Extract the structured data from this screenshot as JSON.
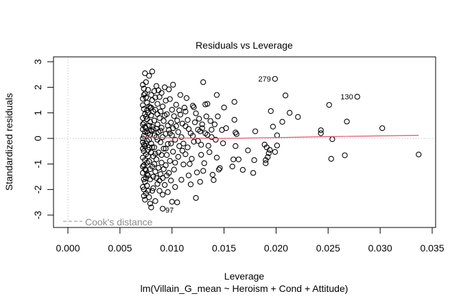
{
  "chart_data": {
    "type": "scatter",
    "title": "Residuals vs Leverage",
    "xlabel": "Leverage",
    "subtitle": "lm(Villain_G_mean ~ Heroism + Cond + Attitude)",
    "ylabel": "Standardized residuals",
    "xlim": [
      0,
      0.035
    ],
    "ylim": [
      -3.3,
      3.1
    ],
    "xticks": [
      "0.000",
      "0.005",
      "0.010",
      "0.015",
      "0.020",
      "0.025",
      "0.030",
      "0.035"
    ],
    "xtick_values": [
      0,
      0.005,
      0.01,
      0.015,
      0.02,
      0.025,
      0.03,
      0.035
    ],
    "yticks": [
      "3",
      "2",
      "1",
      "0",
      "-1",
      "-2",
      "-3"
    ],
    "ytick_values": [
      3,
      2,
      1,
      0,
      -1,
      -2,
      -3
    ],
    "legend": {
      "label": "Cook's distance",
      "position": "bottom-left",
      "style": "dashed",
      "color": "#8c8c8c"
    },
    "smoother_color": "#df536b",
    "smoother": [
      [
        0.0072,
        0.06
      ],
      [
        0.01,
        0.02
      ],
      [
        0.015,
        0.0
      ],
      [
        0.02,
        0.03
      ],
      [
        0.025,
        0.07
      ],
      [
        0.0337,
        0.12
      ]
    ],
    "labeled_points": [
      {
        "label": "279",
        "x": 0.0199,
        "y": 2.33
      },
      {
        "label": "130",
        "x": 0.0278,
        "y": 1.63
      },
      {
        "label": "97",
        "x": 0.0091,
        "y": -2.75
      }
    ],
    "points": [
      [
        0.0199,
        2.33
      ],
      [
        0.0278,
        1.63
      ],
      [
        0.0091,
        -2.75
      ],
      [
        0.0337,
        -0.63
      ],
      [
        0.0302,
        0.4
      ],
      [
        0.0268,
        0.66
      ],
      [
        0.0266,
        -0.66
      ],
      [
        0.0254,
        -0.03
      ],
      [
        0.0253,
        -0.8
      ],
      [
        0.0251,
        1.31
      ],
      [
        0.0243,
        0.32
      ],
      [
        0.0243,
        0.2
      ],
      [
        0.0221,
        0.84
      ],
      [
        0.0213,
        1.0
      ],
      [
        0.0209,
        1.68
      ],
      [
        0.0206,
        0.65
      ],
      [
        0.0201,
        -0.28
      ],
      [
        0.0201,
        0.12
      ],
      [
        0.0199,
        -0.53
      ],
      [
        0.0197,
        0.46
      ],
      [
        0.0195,
        1.07
      ],
      [
        0.0194,
        -0.45
      ],
      [
        0.0193,
        -0.58
      ],
      [
        0.0192,
        -0.73
      ],
      [
        0.0191,
        -0.35
      ],
      [
        0.019,
        -0.85
      ],
      [
        0.0189,
        -0.24
      ],
      [
        0.019,
        -0.97
      ],
      [
        0.018,
        0.28
      ],
      [
        0.0179,
        -0.85
      ],
      [
        0.0178,
        -1.35
      ],
      [
        0.0173,
        -0.47
      ],
      [
        0.0168,
        -1.23
      ],
      [
        0.016,
        1.43
      ],
      [
        0.0161,
        0.23
      ],
      [
        0.016,
        0.73
      ],
      [
        0.0161,
        -0.3
      ],
      [
        0.0158,
        -1.1
      ],
      [
        0.0162,
        0.17
      ],
      [
        0.0159,
        -0.82
      ],
      [
        0.0164,
        -0.82
      ],
      [
        0.0152,
        0.4
      ],
      [
        0.015,
        1.21
      ],
      [
        0.0148,
        0.33
      ],
      [
        0.0149,
        -0.19
      ],
      [
        0.0146,
        -1.16
      ],
      [
        0.0145,
        -1.22
      ],
      [
        0.0144,
        0.86
      ],
      [
        0.0143,
        1.7
      ],
      [
        0.0143,
        -0.75
      ],
      [
        0.0141,
        0.55
      ],
      [
        0.014,
        -1.63
      ],
      [
        0.0139,
        -1.42
      ],
      [
        0.0138,
        0.34
      ],
      [
        0.0137,
        0.68
      ],
      [
        0.0136,
        -0.54
      ],
      [
        0.0135,
        -0.29
      ],
      [
        0.0134,
        0.14
      ],
      [
        0.0134,
        1.35
      ],
      [
        0.0133,
        0.86
      ],
      [
        0.0132,
        1.33
      ],
      [
        0.0131,
        -0.97
      ],
      [
        0.013,
        2.2
      ],
      [
        0.013,
        -1.27
      ],
      [
        0.0129,
        0.4
      ],
      [
        0.0129,
        0.55
      ],
      [
        0.0128,
        -0.64
      ],
      [
        0.0127,
        -1.7
      ],
      [
        0.0127,
        0.28
      ],
      [
        0.0126,
        0.77
      ],
      [
        0.0125,
        0.34
      ],
      [
        0.0124,
        -1.33
      ],
      [
        0.0123,
        0.98
      ],
      [
        0.0123,
        -2.33
      ],
      [
        0.0122,
        0.63
      ],
      [
        0.0121,
        -0.13
      ],
      [
        0.0121,
        1.22
      ],
      [
        0.012,
        1.28
      ],
      [
        0.0119,
        -0.8
      ],
      [
        0.0118,
        0.2
      ],
      [
        0.0117,
        -1.0
      ],
      [
        0.0116,
        0.37
      ],
      [
        0.0116,
        -1.45
      ],
      [
        0.0115,
        0.72
      ],
      [
        0.0114,
        1.58
      ],
      [
        0.0113,
        -0.62
      ],
      [
        0.0113,
        0.48
      ],
      [
        0.0112,
        1.2
      ],
      [
        0.0111,
        -1.02
      ],
      [
        0.011,
        0.58
      ],
      [
        0.011,
        -0.48
      ],
      [
        0.0109,
        -1.62
      ],
      [
        0.0108,
        0.93
      ],
      [
        0.0108,
        1.7
      ],
      [
        0.0107,
        -0.3
      ],
      [
        0.0106,
        0.25
      ],
      [
        0.0106,
        -0.72
      ],
      [
        0.0105,
        -2.5
      ],
      [
        0.0104,
        1.32
      ],
      [
        0.0104,
        0.48
      ],
      [
        0.0103,
        -1.9
      ],
      [
        0.0103,
        -0.05
      ],
      [
        0.0102,
        0.87
      ],
      [
        0.0102,
        -1.22
      ],
      [
        0.0101,
        2.1
      ],
      [
        0.0101,
        -0.52
      ],
      [
        0.01,
        1.12
      ],
      [
        0.01,
        0.12
      ],
      [
        0.01,
        -2.48
      ],
      [
        0.0099,
        -1.65
      ],
      [
        0.0099,
        0.62
      ],
      [
        0.0098,
        1.54
      ],
      [
        0.0098,
        -0.88
      ],
      [
        0.0097,
        0.33
      ],
      [
        0.0097,
        -1.35
      ],
      [
        0.0097,
        1.92
      ],
      [
        0.0096,
        -0.22
      ],
      [
        0.0096,
        -2.1
      ],
      [
        0.0095,
        0.95
      ],
      [
        0.0095,
        -0.65
      ],
      [
        0.0094,
        1.48
      ],
      [
        0.0094,
        -1.05
      ],
      [
        0.0094,
        0.18
      ],
      [
        0.0093,
        -1.82
      ],
      [
        0.0093,
        2.0
      ],
      [
        0.0092,
        0.68
      ],
      [
        0.0092,
        -0.4
      ],
      [
        0.0091,
        1.25
      ],
      [
        0.0091,
        -1.55
      ],
      [
        0.0091,
        -2.2
      ],
      [
        0.009,
        0.42
      ],
      [
        0.009,
        1.78
      ],
      [
        0.009,
        -0.95
      ],
      [
        0.0089,
        -0.15
      ],
      [
        0.0089,
        1.05
      ],
      [
        0.0089,
        -1.4
      ],
      [
        0.0088,
        0.8
      ],
      [
        0.0088,
        -2.05
      ],
      [
        0.0088,
        1.62
      ],
      [
        0.0087,
        -0.55
      ],
      [
        0.0087,
        0.25
      ],
      [
        0.0087,
        -1.15
      ],
      [
        0.0086,
        1.35
      ],
      [
        0.0086,
        -1.78
      ],
      [
        0.0086,
        0.55
      ],
      [
        0.0085,
        2.05
      ],
      [
        0.0085,
        -0.82
      ],
      [
        0.0085,
        0.05
      ],
      [
        0.0084,
        -2.45
      ],
      [
        0.0084,
        1.12
      ],
      [
        0.0084,
        -1.3
      ],
      [
        0.0083,
        0.7
      ],
      [
        0.0083,
        -0.35
      ],
      [
        0.0083,
        1.85
      ],
      [
        0.0082,
        -1.95
      ],
      [
        0.0082,
        0.35
      ],
      [
        0.0082,
        -0.7
      ],
      [
        0.0081,
        1.5
      ],
      [
        0.0081,
        -1.1
      ],
      [
        0.0081,
        2.62
      ],
      [
        0.008,
        0.9
      ],
      [
        0.008,
        -0.2
      ],
      [
        0.008,
        -2.7
      ],
      [
        0.008,
        1.7
      ],
      [
        0.0079,
        -1.6
      ],
      [
        0.0079,
        0.15
      ],
      [
        0.0079,
        1.2
      ],
      [
        0.0078,
        -0.9
      ],
      [
        0.0078,
        0.5
      ],
      [
        0.0078,
        2.45
      ],
      [
        0.0078,
        -2.3
      ],
      [
        0.0077,
        1.0
      ],
      [
        0.0077,
        -0.45
      ],
      [
        0.0077,
        -1.45
      ],
      [
        0.0077,
        1.9
      ],
      [
        0.0076,
        0.28
      ],
      [
        0.0076,
        -1.85
      ],
      [
        0.0076,
        0.75
      ],
      [
        0.0076,
        -0.1
      ],
      [
        0.0076,
        1.4
      ],
      [
        0.0075,
        -2.15
      ],
      [
        0.0075,
        -0.62
      ],
      [
        0.0075,
        2.2
      ],
      [
        0.0075,
        0.4
      ],
      [
        0.0075,
        -1.25
      ],
      [
        0.0075,
        1.6
      ],
      [
        0.0074,
        -0.3
      ],
      [
        0.0074,
        0.95
      ],
      [
        0.0074,
        -1.7
      ],
      [
        0.0074,
        1.75
      ],
      [
        0.0074,
        -0.85
      ],
      [
        0.0074,
        2.55
      ],
      [
        0.0074,
        -2.4
      ],
      [
        0.0073,
        0.1
      ],
      [
        0.0073,
        1.15
      ],
      [
        0.0073,
        -1.05
      ],
      [
        0.0073,
        0.6
      ],
      [
        0.0073,
        -0.5
      ],
      [
        0.0073,
        1.95
      ],
      [
        0.0073,
        -2.0
      ],
      [
        0.0073,
        -2.25
      ],
      [
        0.0072,
        0.8
      ],
      [
        0.0072,
        -1.35
      ],
      [
        0.0072,
        1.3
      ],
      [
        0.0072,
        -0.15
      ],
      [
        0.0072,
        -0.75
      ],
      [
        0.0072,
        0.35
      ],
      [
        0.0072,
        1.55
      ],
      [
        0.0072,
        -1.9
      ],
      [
        0.0072,
        2.1
      ],
      [
        0.0072,
        -0.4
      ],
      [
        0.0081,
        0.45
      ],
      [
        0.008,
        -0.55
      ],
      [
        0.0079,
        0.65
      ],
      [
        0.0078,
        -0.05
      ],
      [
        0.0077,
        0.2
      ],
      [
        0.0076,
        -0.95
      ],
      [
        0.0075,
        0.85
      ],
      [
        0.0074,
        0.25
      ],
      [
        0.0073,
        -0.25
      ],
      [
        0.0072,
        0.0
      ],
      [
        0.0086,
        -0.05
      ],
      [
        0.0085,
        0.38
      ],
      [
        0.0084,
        -0.6
      ],
      [
        0.0083,
        0.12
      ],
      [
        0.0082,
        1.05
      ],
      [
        0.0081,
        -0.35
      ],
      [
        0.008,
        0.3
      ],
      [
        0.0079,
        -1.2
      ],
      [
        0.0078,
        1.25
      ],
      [
        0.0077,
        -0.7
      ],
      [
        0.0076,
        1.1
      ],
      [
        0.0075,
        -1.55
      ],
      [
        0.0074,
        0.45
      ],
      [
        0.0073,
        1.7
      ],
      [
        0.0072,
        -1.1
      ],
      [
        0.0091,
        0.05
      ],
      [
        0.009,
        -0.65
      ],
      [
        0.0089,
        0.3
      ],
      [
        0.0088,
        -1.65
      ],
      [
        0.0087,
        1.88
      ],
      [
        0.0086,
        0.95
      ],
      [
        0.0085,
        -1.55
      ],
      [
        0.0084,
        1.6
      ],
      [
        0.0083,
        -1.0
      ],
      [
        0.0082,
        -1.5
      ],
      [
        0.0081,
        -2.05
      ],
      [
        0.008,
        1.2
      ],
      [
        0.0079,
        -2.55
      ],
      [
        0.0078,
        -0.35
      ],
      [
        0.0077,
        -2.05
      ],
      [
        0.0076,
        -1.4
      ],
      [
        0.0075,
        -0.2
      ],
      [
        0.0074,
        -1.2
      ],
      [
        0.0073,
        -1.6
      ],
      [
        0.0072,
        0.55
      ],
      [
        0.0096,
        0.5
      ],
      [
        0.0095,
        -1.45
      ],
      [
        0.0094,
        -0.4
      ],
      [
        0.0093,
        0.9
      ],
      [
        0.0092,
        -1.2
      ],
      [
        0.0098,
        0.2
      ],
      [
        0.0099,
        -0.2
      ],
      [
        0.0101,
        0.4
      ],
      [
        0.0103,
        -0.95
      ],
      [
        0.0105,
        0.7
      ],
      [
        0.0107,
        1.1
      ],
      [
        0.0109,
        0.05
      ],
      [
        0.0111,
        -0.2
      ],
      [
        0.0113,
        1.05
      ],
      [
        0.0115,
        -0.35
      ],
      [
        0.0118,
        -1.8
      ],
      [
        0.012,
        0.1
      ],
      [
        0.0125,
        -0.1
      ],
      [
        0.0128,
        -0.25
      ],
      [
        0.0132,
        0.2
      ],
      [
        0.0138,
        0.05
      ],
      [
        0.0142,
        -0.05
      ]
    ]
  }
}
